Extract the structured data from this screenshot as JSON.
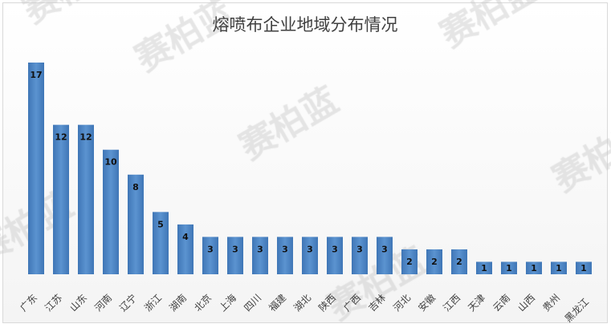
{
  "chart_data": {
    "type": "bar",
    "title": "熔喷布企业地域分布情况",
    "categories": [
      "广东",
      "江苏",
      "山东",
      "河南",
      "辽宁",
      "浙江",
      "湖南",
      "北京",
      "上海",
      "四川",
      "福建",
      "湖北",
      "陕西",
      "广西",
      "吉林",
      "河北",
      "安徽",
      "江西",
      "天津",
      "云南",
      "山西",
      "贵州",
      "黑龙江"
    ],
    "values": [
      17,
      12,
      12,
      10,
      8,
      5,
      4,
      3,
      3,
      3,
      3,
      3,
      3,
      3,
      3,
      2,
      2,
      2,
      1,
      1,
      1,
      1,
      1
    ],
    "xlabel": "",
    "ylabel": "",
    "ylim": [
      0,
      17
    ],
    "grid": false,
    "legend": "none",
    "data_labels": true,
    "bar_color": "#4f87c5"
  },
  "watermark": "赛柏蓝"
}
